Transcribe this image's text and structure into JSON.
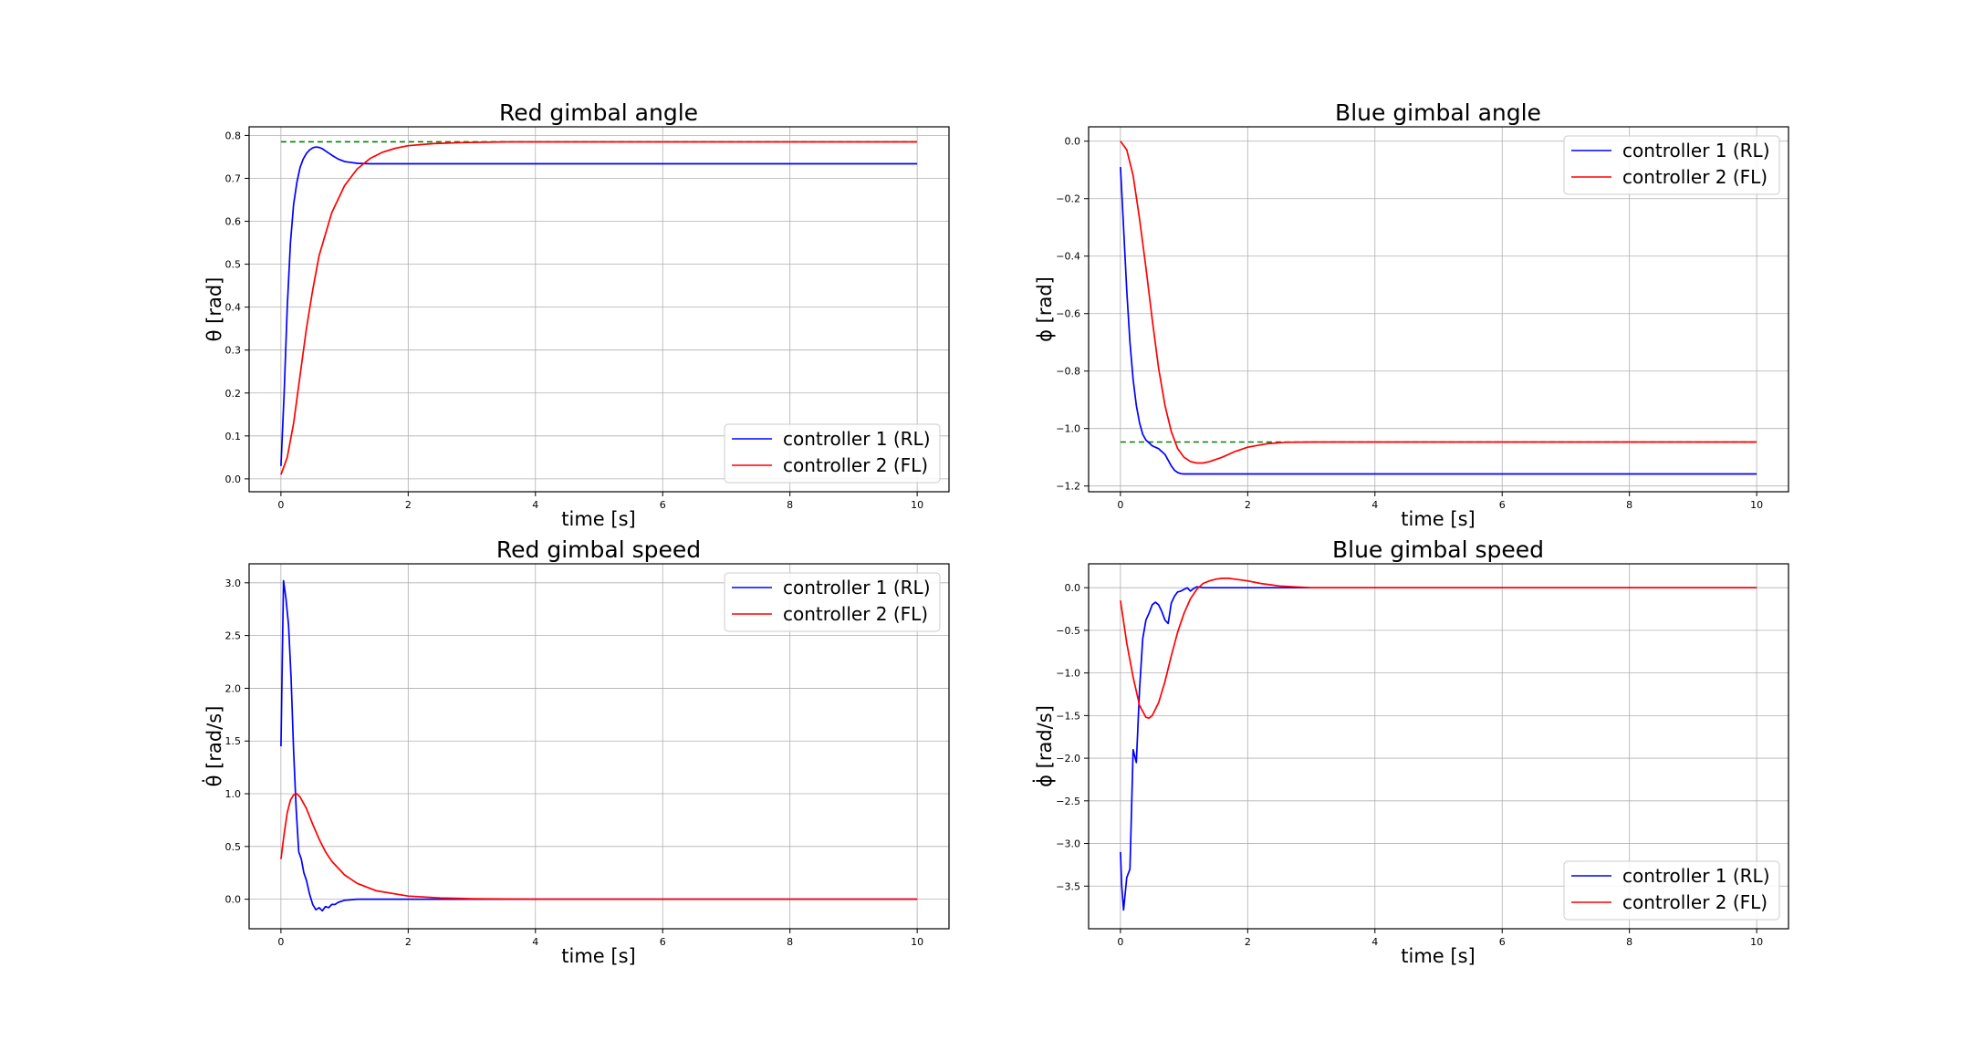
{
  "chart_data": [
    {
      "type": "line",
      "title": "Red gimbal angle",
      "xlabel": "time [s]",
      "ylabel": "θ [rad]",
      "xlim": [
        -0.5,
        10.5
      ],
      "ylim": [
        -0.03,
        0.82
      ],
      "xticks": [
        0,
        2,
        4,
        6,
        8,
        10
      ],
      "yticks": [
        0.0,
        0.1,
        0.2,
        0.3,
        0.4,
        0.5,
        0.6,
        0.7,
        0.8
      ],
      "ytick_labels": [
        "0.0",
        "0.1",
        "0.2",
        "0.3",
        "0.4",
        "0.5",
        "0.6",
        "0.7",
        "0.8"
      ],
      "grid": true,
      "legend_position": "lower-right",
      "reference": {
        "value": 0.785,
        "style": "dashed",
        "color": "#008000",
        "x_range": [
          0,
          10
        ]
      },
      "series": [
        {
          "name": "controller 1 (RL)",
          "color": "#0000ff",
          "x": [
            0,
            0.05,
            0.1,
            0.15,
            0.2,
            0.25,
            0.3,
            0.35,
            0.4,
            0.45,
            0.5,
            0.55,
            0.6,
            0.65,
            0.7,
            0.8,
            0.9,
            1.0,
            1.2,
            1.4,
            1.6,
            2,
            3,
            4,
            6,
            8,
            10
          ],
          "y": [
            0.03,
            0.2,
            0.4,
            0.55,
            0.64,
            0.69,
            0.725,
            0.745,
            0.758,
            0.766,
            0.771,
            0.773,
            0.772,
            0.769,
            0.764,
            0.754,
            0.745,
            0.739,
            0.735,
            0.734,
            0.734,
            0.734,
            0.734,
            0.734,
            0.734,
            0.734,
            0.734
          ]
        },
        {
          "name": "controller 2 (FL)",
          "color": "#ff0000",
          "x": [
            0,
            0.1,
            0.2,
            0.3,
            0.4,
            0.5,
            0.6,
            0.8,
            1.0,
            1.2,
            1.4,
            1.6,
            1.8,
            2.0,
            2.4,
            2.8,
            3.2,
            3.6,
            4,
            5,
            6,
            8,
            10
          ],
          "y": [
            0.01,
            0.05,
            0.13,
            0.24,
            0.35,
            0.44,
            0.52,
            0.62,
            0.683,
            0.722,
            0.746,
            0.761,
            0.77,
            0.776,
            0.781,
            0.783,
            0.784,
            0.785,
            0.785,
            0.785,
            0.785,
            0.785,
            0.785
          ]
        }
      ]
    },
    {
      "type": "line",
      "title": "Blue gimbal angle",
      "xlabel": "time [s]",
      "ylabel": "ϕ [rad]",
      "xlim": [
        -0.5,
        10.5
      ],
      "ylim": [
        -1.22,
        0.05
      ],
      "xticks": [
        0,
        2,
        4,
        6,
        8,
        10
      ],
      "yticks": [
        0.0,
        -0.2,
        -0.4,
        -0.6,
        -0.8,
        -1.0,
        -1.2
      ],
      "ytick_labels": [
        "0.0",
        "−0.2",
        "−0.4",
        "−0.6",
        "−0.8",
        "−1.0",
        "−1.2"
      ],
      "grid": true,
      "legend_position": "upper-right",
      "reference": {
        "value": -1.047,
        "style": "dashed",
        "color": "#008000",
        "x_range": [
          0,
          10
        ]
      },
      "series": [
        {
          "name": "controller 1 (RL)",
          "color": "#0000ff",
          "x": [
            0,
            0.05,
            0.1,
            0.15,
            0.2,
            0.25,
            0.3,
            0.35,
            0.4,
            0.5,
            0.6,
            0.7,
            0.75,
            0.8,
            0.85,
            0.9,
            0.95,
            1.0,
            1.1,
            1.2,
            1.5,
            2,
            3,
            4,
            6,
            8,
            10
          ],
          "y": [
            -0.09,
            -0.3,
            -0.52,
            -0.7,
            -0.83,
            -0.92,
            -0.98,
            -1.02,
            -1.04,
            -1.06,
            -1.07,
            -1.09,
            -1.11,
            -1.13,
            -1.145,
            -1.153,
            -1.157,
            -1.158,
            -1.158,
            -1.158,
            -1.158,
            -1.158,
            -1.158,
            -1.158,
            -1.158,
            -1.158,
            -1.158
          ]
        },
        {
          "name": "controller 2 (FL)",
          "color": "#ff0000",
          "x": [
            0,
            0.1,
            0.2,
            0.3,
            0.4,
            0.5,
            0.6,
            0.7,
            0.8,
            0.9,
            1.0,
            1.1,
            1.2,
            1.3,
            1.4,
            1.6,
            1.8,
            2.0,
            2.3,
            2.6,
            3,
            4,
            6,
            8,
            10
          ],
          "y": [
            0.0,
            -0.03,
            -0.12,
            -0.27,
            -0.44,
            -0.62,
            -0.79,
            -0.92,
            -1.01,
            -1.07,
            -1.1,
            -1.115,
            -1.12,
            -1.12,
            -1.115,
            -1.1,
            -1.08,
            -1.065,
            -1.053,
            -1.048,
            -1.047,
            -1.047,
            -1.047,
            -1.047,
            -1.047
          ]
        }
      ]
    },
    {
      "type": "line",
      "title": "Red gimbal speed",
      "xlabel": "time [s]",
      "ylabel": "θ̇ [rad/s]",
      "xlim": [
        -0.5,
        10.5
      ],
      "ylim": [
        -0.28,
        3.18
      ],
      "xticks": [
        0,
        2,
        4,
        6,
        8,
        10
      ],
      "yticks": [
        0.0,
        0.5,
        1.0,
        1.5,
        2.0,
        2.5,
        3.0
      ],
      "ytick_labels": [
        "0.0",
        "0.5",
        "1.0",
        "1.5",
        "2.0",
        "2.5",
        "3.0"
      ],
      "grid": true,
      "legend_position": "upper-right",
      "series": [
        {
          "name": "controller 1 (RL)",
          "color": "#0000ff",
          "x": [
            0,
            0.04,
            0.08,
            0.12,
            0.16,
            0.2,
            0.24,
            0.28,
            0.32,
            0.36,
            0.4,
            0.45,
            0.5,
            0.55,
            0.6,
            0.65,
            0.7,
            0.75,
            0.8,
            0.85,
            0.9,
            0.95,
            1.0,
            1.2,
            1.5,
            2,
            3,
            4,
            6,
            8,
            10
          ],
          "y": [
            1.45,
            3.02,
            2.85,
            2.6,
            2.1,
            1.4,
            0.85,
            0.45,
            0.38,
            0.25,
            0.18,
            0.05,
            -0.05,
            -0.1,
            -0.08,
            -0.11,
            -0.07,
            -0.08,
            -0.05,
            -0.05,
            -0.03,
            -0.02,
            -0.01,
            0.0,
            0.0,
            0.0,
            0.0,
            0.0,
            0.0,
            0.0,
            0.0
          ]
        },
        {
          "name": "controller 2 (FL)",
          "color": "#ff0000",
          "x": [
            0,
            0.05,
            0.1,
            0.15,
            0.2,
            0.25,
            0.3,
            0.4,
            0.5,
            0.6,
            0.7,
            0.8,
            1.0,
            1.2,
            1.5,
            2.0,
            2.5,
            3.0,
            3.5,
            4,
            6,
            8,
            10
          ],
          "y": [
            0.38,
            0.62,
            0.82,
            0.94,
            0.99,
            1.0,
            0.97,
            0.86,
            0.71,
            0.57,
            0.45,
            0.36,
            0.23,
            0.15,
            0.08,
            0.03,
            0.012,
            0.005,
            0.002,
            0.0,
            0.0,
            0.0,
            0.0
          ]
        }
      ]
    },
    {
      "type": "line",
      "title": "Blue gimbal speed",
      "xlabel": "time [s]",
      "ylabel": "ϕ̇ [rad/s]",
      "xlim": [
        -0.5,
        10.5
      ],
      "ylim": [
        -4.0,
        0.28
      ],
      "xticks": [
        0,
        2,
        4,
        6,
        8,
        10
      ],
      "yticks": [
        0.0,
        -0.5,
        -1.0,
        -1.5,
        -2.0,
        -2.5,
        -3.0,
        -3.5
      ],
      "ytick_labels": [
        "0.0",
        "−0.5",
        "−1.0",
        "−1.5",
        "−2.0",
        "−2.5",
        "−3.0",
        "−3.5"
      ],
      "grid": true,
      "legend_position": "lower-right",
      "series": [
        {
          "name": "controller 1 (RL)",
          "color": "#0000ff",
          "x": [
            0,
            0.02,
            0.05,
            0.1,
            0.15,
            0.2,
            0.25,
            0.3,
            0.35,
            0.4,
            0.45,
            0.5,
            0.55,
            0.6,
            0.65,
            0.7,
            0.75,
            0.8,
            0.85,
            0.9,
            0.95,
            1.0,
            1.05,
            1.1,
            1.15,
            1.2,
            1.3,
            1.5,
            2,
            3,
            4,
            6,
            8,
            10
          ],
          "y": [
            -3.1,
            -3.5,
            -3.78,
            -3.4,
            -3.3,
            -1.9,
            -2.05,
            -1.2,
            -0.6,
            -0.38,
            -0.3,
            -0.2,
            -0.17,
            -0.2,
            -0.28,
            -0.38,
            -0.42,
            -0.18,
            -0.1,
            -0.05,
            -0.04,
            -0.02,
            0.0,
            -0.04,
            -0.01,
            0.01,
            0.0,
            0.0,
            0.0,
            0.0,
            0.0,
            0.0,
            0.0,
            0.0
          ]
        },
        {
          "name": "controller 2 (FL)",
          "color": "#ff0000",
          "x": [
            0,
            0.1,
            0.2,
            0.3,
            0.4,
            0.45,
            0.5,
            0.6,
            0.7,
            0.8,
            0.9,
            1.0,
            1.1,
            1.2,
            1.3,
            1.4,
            1.5,
            1.6,
            1.7,
            1.8,
            2.0,
            2.2,
            2.5,
            3.0,
            3.5,
            4,
            6,
            8,
            10
          ],
          "y": [
            -0.15,
            -0.65,
            -1.05,
            -1.38,
            -1.52,
            -1.53,
            -1.5,
            -1.35,
            -1.1,
            -0.8,
            -0.52,
            -0.3,
            -0.13,
            -0.02,
            0.05,
            0.08,
            0.1,
            0.11,
            0.11,
            0.1,
            0.08,
            0.05,
            0.02,
            0.0,
            0.0,
            0.0,
            0.0,
            0.0,
            0.0
          ]
        }
      ]
    }
  ]
}
